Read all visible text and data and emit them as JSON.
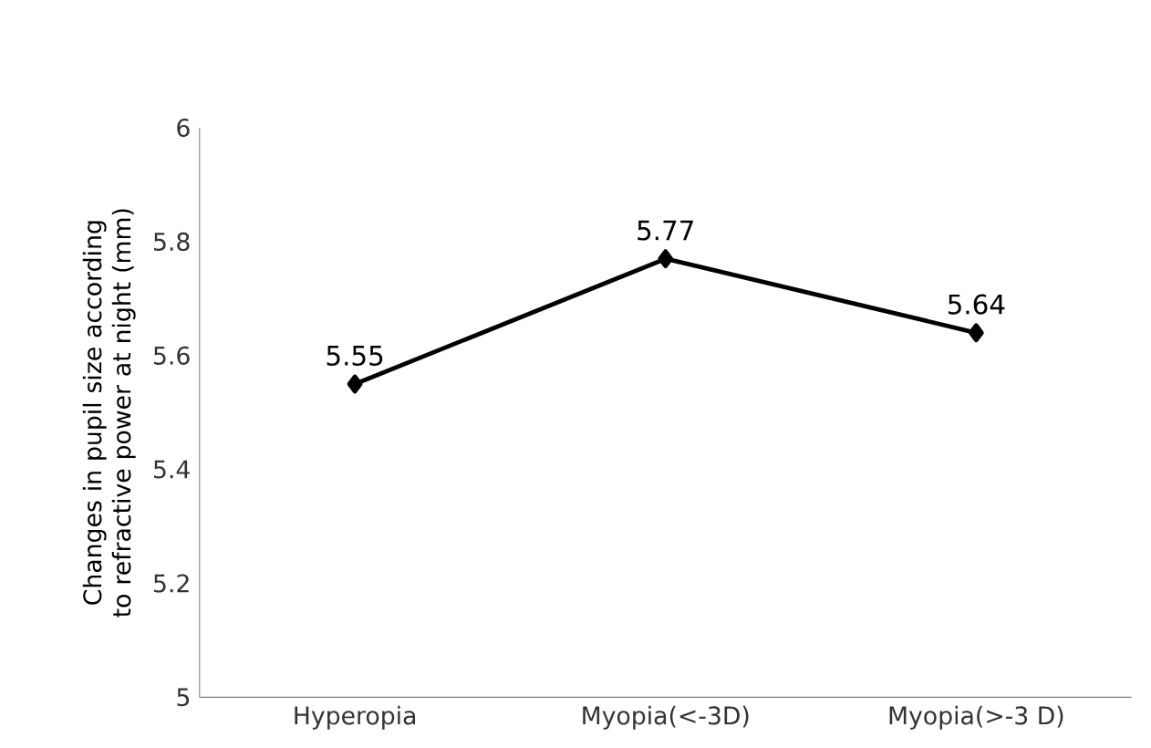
{
  "chart_data": {
    "type": "line",
    "ylabel": "Changes in pupil size according to refractive power at night (mm)",
    "categories": [
      "Hyperopia",
      "Myopia(<-3D)",
      "Myopia(>-3 D)"
    ],
    "series": [
      {
        "color": "#000000",
        "values": [
          5.55,
          5.77,
          5.64
        ]
      }
    ],
    "ylim": [
      5,
      6
    ],
    "yticks": [
      5,
      5.2,
      5.4,
      5.6,
      5.8,
      6
    ],
    "marker": "diamond",
    "line_style": "solid",
    "data_labels": true,
    "grid": false
  }
}
